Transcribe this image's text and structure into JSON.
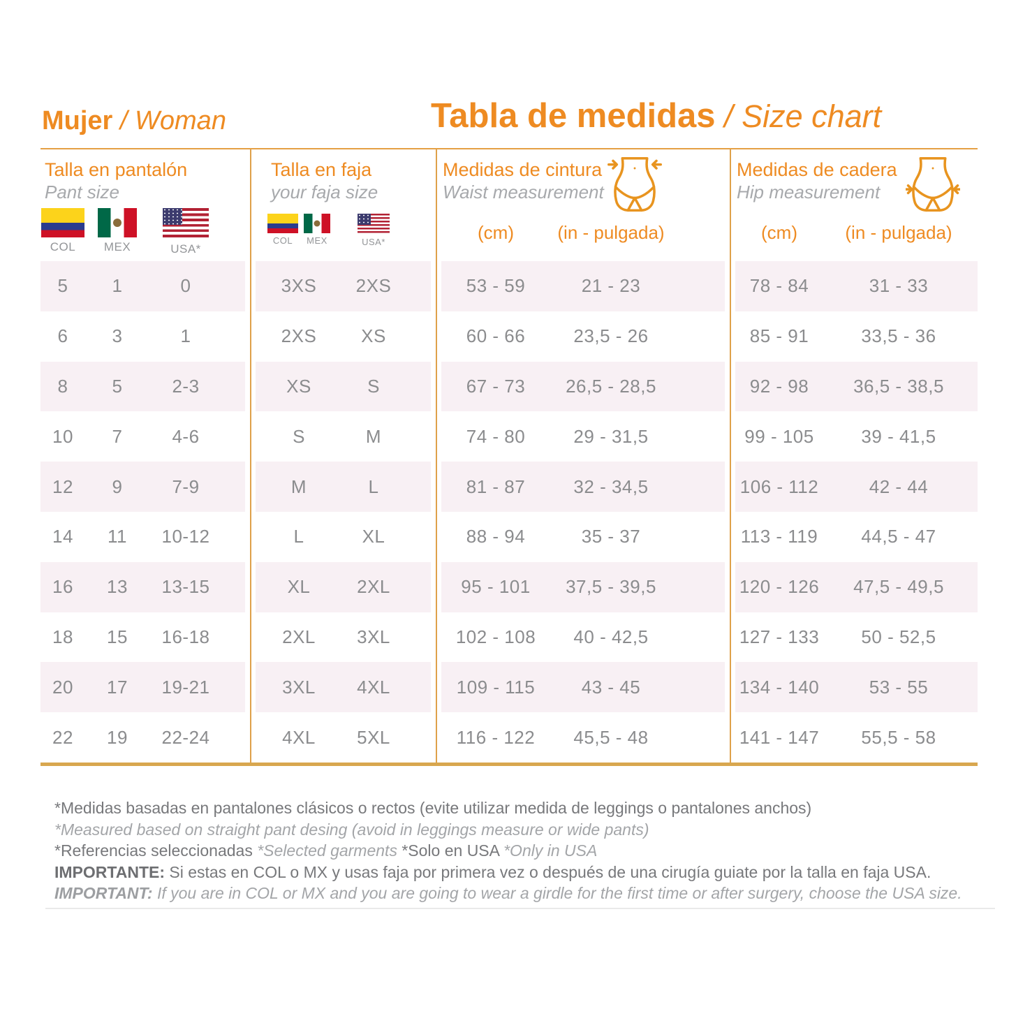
{
  "header": {
    "gender_bold": "Mujer",
    "gender_italic": " / Woman",
    "title_bold": "Tabla de medidas",
    "title_italic": " / Size chart"
  },
  "columns": [
    {
      "title": "Talla en pantalón",
      "subtitle": "Pant size",
      "flags": [
        "COL",
        "MEX",
        "USA*"
      ]
    },
    {
      "title": "Talla en faja",
      "subtitle": "your faja size",
      "flags": [
        "COL",
        "MEX",
        "USA*"
      ]
    },
    {
      "title": "Medidas de cintura",
      "subtitle": "Waist measurement",
      "unit_metric": "(cm)",
      "unit_imperial": "(in - pulgada)",
      "icon": "waist-measure-icon"
    },
    {
      "title": "Medidas de cadera",
      "subtitle": "Hip measurement",
      "unit_metric": "(cm)",
      "unit_imperial": "(in - pulgada)",
      "icon": "hip-measure-icon"
    }
  ],
  "rows": [
    {
      "pant_col": "5",
      "pant_mex": "1",
      "pant_usa": "0",
      "faja_col_mex": "3XS",
      "faja_usa": "2XS",
      "waist_cm": "53 - 59",
      "waist_in": "21 - 23",
      "hip_cm": "78 - 84",
      "hip_in": "31 - 33"
    },
    {
      "pant_col": "6",
      "pant_mex": "3",
      "pant_usa": "1",
      "faja_col_mex": "2XS",
      "faja_usa": "XS",
      "waist_cm": "60 - 66",
      "waist_in": "23,5 - 26",
      "hip_cm": "85 - 91",
      "hip_in": "33,5 - 36"
    },
    {
      "pant_col": "8",
      "pant_mex": "5",
      "pant_usa": "2-3",
      "faja_col_mex": "XS",
      "faja_usa": "S",
      "waist_cm": "67 - 73",
      "waist_in": "26,5 - 28,5",
      "hip_cm": "92 - 98",
      "hip_in": "36,5 - 38,5"
    },
    {
      "pant_col": "10",
      "pant_mex": "7",
      "pant_usa": "4-6",
      "faja_col_mex": "S",
      "faja_usa": "M",
      "waist_cm": "74 - 80",
      "waist_in": "29 - 31,5",
      "hip_cm": "99 - 105",
      "hip_in": "39 - 41,5"
    },
    {
      "pant_col": "12",
      "pant_mex": "9",
      "pant_usa": "7-9",
      "faja_col_mex": "M",
      "faja_usa": "L",
      "waist_cm": "81 - 87",
      "waist_in": "32 - 34,5",
      "hip_cm": "106 - 112",
      "hip_in": "42 - 44"
    },
    {
      "pant_col": "14",
      "pant_mex": "11",
      "pant_usa": "10-12",
      "faja_col_mex": "L",
      "faja_usa": "XL",
      "waist_cm": "88 - 94",
      "waist_in": "35 - 37",
      "hip_cm": "113 - 119",
      "hip_in": "44,5 - 47"
    },
    {
      "pant_col": "16",
      "pant_mex": "13",
      "pant_usa": "13-15",
      "faja_col_mex": "XL",
      "faja_usa": "2XL",
      "waist_cm": "95 - 101",
      "waist_in": "37,5 - 39,5",
      "hip_cm": "120 - 126",
      "hip_in": "47,5 - 49,5"
    },
    {
      "pant_col": "18",
      "pant_mex": "15",
      "pant_usa": "16-18",
      "faja_col_mex": "2XL",
      "faja_usa": "3XL",
      "waist_cm": "102 - 108",
      "waist_in": "40 - 42,5",
      "hip_cm": "127 - 133",
      "hip_in": "50 - 52,5"
    },
    {
      "pant_col": "20",
      "pant_mex": "17",
      "pant_usa": "19-21",
      "faja_col_mex": "3XL",
      "faja_usa": "4XL",
      "waist_cm": "109 - 115",
      "waist_in": "43 - 45",
      "hip_cm": "134 - 140",
      "hip_in": "53 - 55"
    },
    {
      "pant_col": "22",
      "pant_mex": "19",
      "pant_usa": "22-24",
      "faja_col_mex": "4XL",
      "faja_usa": "5XL",
      "waist_cm": "116 - 122",
      "waist_in": "45,5 - 48",
      "hip_cm": "141 - 147",
      "hip_in": "55,5 - 58"
    }
  ],
  "notes": [
    [
      {
        "t": "*Medidas basadas en pantalones clásicos o rectos (evite utilizar medida de leggings o pantalones anchos)",
        "s": "regular"
      }
    ],
    [
      {
        "t": "*Measured based on straight pant desing (avoid in leggings measure or wide pants)",
        "s": "italic"
      }
    ],
    [
      {
        "t": "*Referencias seleccionadas ",
        "s": "regular"
      },
      {
        "t": "*Selected garments",
        "s": "italic"
      },
      {
        "t": " *Solo en USA ",
        "s": "regular"
      },
      {
        "t": "*Only in USA",
        "s": "italic"
      }
    ],
    [
      {
        "t": "IMPORTANTE: ",
        "s": "bold"
      },
      {
        "t": "Si estas en COL o MX y usas faja por primera vez o después de una cirugía guiate por la talla en faja USA.",
        "s": "regular"
      }
    ],
    [
      {
        "t": "IMPORTANT: ",
        "s": "bold-italic"
      },
      {
        "t": "If you are in COL or MX and you are going to wear a girdle for the first time or after surgery, choose the USA size.",
        "s": "italic"
      }
    ]
  ],
  "colors": {
    "accent_orange": "#EE8B22",
    "grid_line": "#DFA14A",
    "bottom_line": "#D8A74F",
    "row_pink": "#F8F0F4",
    "data_gray": "#8B8C8E"
  }
}
